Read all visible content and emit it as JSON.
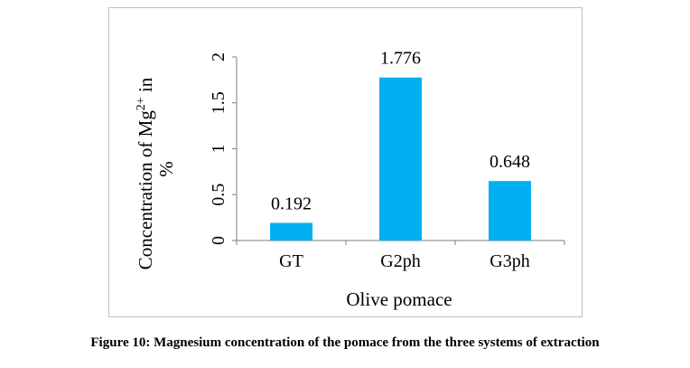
{
  "chart_data": {
    "type": "bar",
    "categories": [
      "GT",
      "G2ph",
      "G3ph"
    ],
    "values": [
      0.192,
      1.776,
      0.648
    ],
    "data_labels": [
      "0.192",
      "1.776",
      "0.648"
    ],
    "xlabel": "Olive pomace",
    "ylabel": {
      "prefix": "Concentration of Mg",
      "superscript": "2+",
      "suffix": " in",
      "line2": "%"
    },
    "ylim": [
      0,
      2
    ],
    "yticks": [
      0,
      0.5,
      1,
      1.5,
      2
    ],
    "ytick_labels": [
      "0",
      "0.5",
      "1",
      "1.5",
      "2"
    ],
    "grid": false,
    "legend": "none",
    "bar_color": "#00b0f0"
  },
  "caption": "Figure 10: Magnesium concentration of the pomace from the three systems of extraction"
}
